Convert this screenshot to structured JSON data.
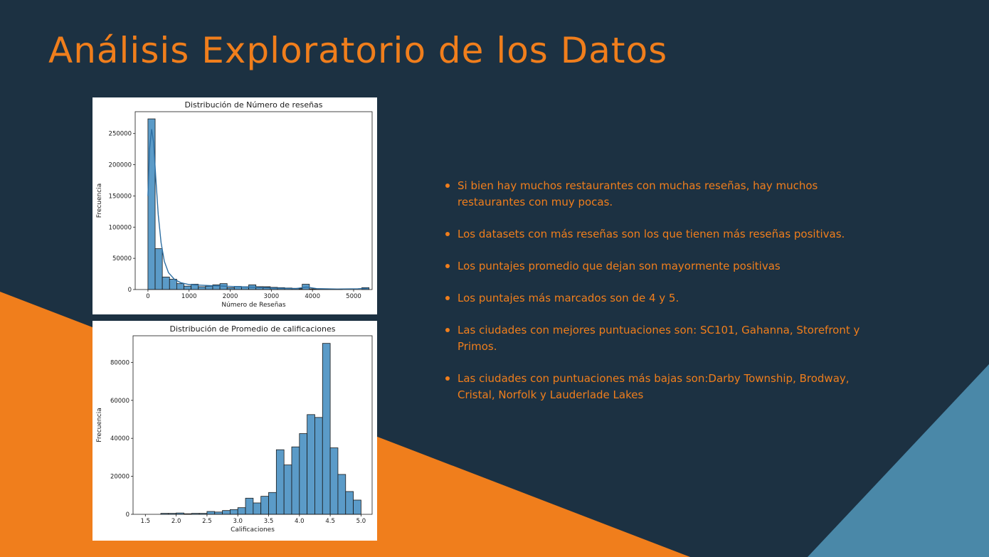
{
  "colors": {
    "background": "#1c3142",
    "accent": "#f07e1c",
    "triangle": "#4a88a8",
    "bar_fill": "#5b9bc8",
    "kde_line": "#2e6fa3"
  },
  "title": "Análisis Exploratorio de los Datos",
  "bullets": [
    "Si bien hay muchos restaurantes con muchas reseñas, hay muchos restaurantes con muy pocas.",
    "Los datasets con más reseñas son los que tienen más reseñas positivas.",
    "Los puntajes promedio que dejan son mayormente positivas",
    "Los puntajes más marcados son de 4 y 5.",
    "Las ciudades con mejores puntuaciones son: SC101, Gahanna, Storefront y Primos.",
    "Las ciudades con puntuaciones más bajas son:Darby Township, Brodway, Cristal, Norfolk y Lauderlade Lakes"
  ],
  "chart_data": [
    {
      "type": "bar",
      "title": "Distribución de Número de reseñas",
      "xlabel": "Número de Reseñas",
      "ylabel": "Frecuencia",
      "xlim": [
        -310,
        5450
      ],
      "ylim": [
        0,
        285000
      ],
      "xticks": [
        0,
        1000,
        2000,
        3000,
        4000,
        5000
      ],
      "yticks": [
        0,
        50000,
        100000,
        150000,
        200000,
        250000
      ],
      "bin_start": 0,
      "bin_width": 175,
      "values": [
        273500,
        65500,
        20000,
        16500,
        9500,
        5500,
        8500,
        4500,
        5500,
        7500,
        9500,
        3000,
        5000,
        4500,
        2500,
        4500,
        4500,
        3500,
        3000,
        2500,
        2000,
        1500,
        1000,
        1000,
        1000,
        0,
        0,
        0,
        0,
        0,
        0,
        0,
        0,
        0,
        0,
        0,
        0,
        0,
        0,
        0
      ],
      "overlay_values": [
        7500,
        4500,
        3500,
        3000,
        2500,
        1800,
        1500,
        1000,
        800,
        500,
        300,
        200,
        100
      ],
      "overlay_bin_start": 2450,
      "overlay_extra": [
        {
          "x": 3750,
          "width": 175,
          "value": 8500
        },
        {
          "x": 5200,
          "width": 175,
          "value": 3000
        }
      ],
      "kde": {
        "x": [
          0,
          40,
          90,
          140,
          190,
          250,
          320,
          400,
          500,
          650,
          800,
          1000,
          1300,
          1600,
          2000,
          2400,
          3000,
          3600,
          3850,
          4100,
          4600,
          5100,
          5350
        ],
        "y": [
          150000,
          225000,
          257000,
          235000,
          180000,
          120000,
          75000,
          45000,
          27000,
          16000,
          11000,
          8000,
          7000,
          6000,
          5000,
          4000,
          2500,
          1500,
          4000,
          1500,
          800,
          1200,
          2000
        ]
      }
    },
    {
      "type": "bar",
      "title": "Distribución de Promedio de calificaciones",
      "xlabel": "Calificaciones",
      "ylabel": "Frecuencia",
      "xlim": [
        1.3,
        5.18
      ],
      "ylim": [
        0,
        94000
      ],
      "xticks": [
        1.5,
        2.0,
        2.5,
        3.0,
        3.5,
        4.0,
        4.5,
        5.0
      ],
      "xtick_labels": [
        "1.5",
        "2.0",
        "2.5",
        "3.0",
        "3.5",
        "4.0",
        "4.5",
        "5.0"
      ],
      "yticks": [
        0,
        20000,
        40000,
        60000,
        80000
      ],
      "bin_start": 1.5,
      "bin_width": 0.125,
      "values": [
        0,
        0,
        500,
        500,
        700,
        300,
        500,
        500,
        1500,
        1200,
        2000,
        2500,
        3500,
        8500,
        6000,
        9500,
        11500,
        34000,
        26000,
        35500,
        42500,
        52500,
        51000,
        90000,
        35000,
        21000,
        12000,
        7500
      ]
    }
  ]
}
